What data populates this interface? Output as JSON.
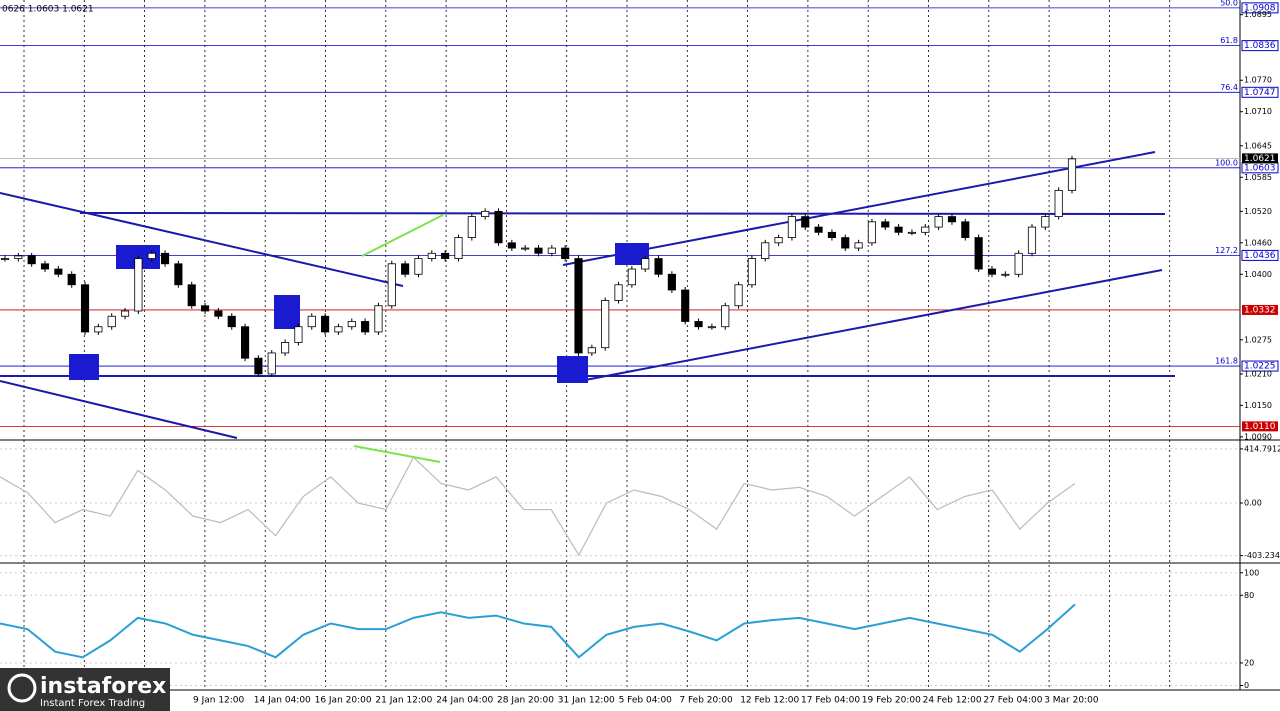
{
  "header": "0626 1.0603 1.0621",
  "logo": {
    "name": "instaforex",
    "tagline": "Instant Forex Trading"
  },
  "xtick_labels": [
    "9 Jan 12:00",
    "14 Jan 04:00",
    "16 Jan 20:00",
    "21 Jan 12:00",
    "24 Jan 04:00",
    "28 Jan 20:00",
    "31 Jan 12:00",
    "5 Feb 04:00",
    "7 Feb 20:00",
    "12 Feb 12:00",
    "17 Feb 04:00",
    "19 Feb 20:00",
    "24 Feb 12:00",
    "27 Feb 04:00",
    "3 Mar 20:00"
  ],
  "chart_data": [
    {
      "type": "candlestick",
      "close": [
        1.043,
        1.0435,
        1.042,
        1.041,
        1.04,
        1.038,
        1.029,
        1.03,
        1.032,
        1.033,
        1.043,
        1.044,
        1.042,
        1.038,
        1.034,
        1.033,
        1.032,
        1.03,
        1.024,
        1.021,
        1.025,
        1.027,
        1.03,
        1.032,
        1.029,
        1.03,
        1.031,
        1.029,
        1.034,
        1.042,
        1.04,
        1.043,
        1.044,
        1.043,
        1.047,
        1.051,
        1.052,
        1.046,
        1.045,
        1.045,
        1.044,
        1.045,
        1.043,
        1.025,
        1.026,
        1.035,
        1.038,
        1.041,
        1.043,
        1.04,
        1.037,
        1.031,
        1.03,
        1.03,
        1.034,
        1.038,
        1.043,
        1.046,
        1.047,
        1.051,
        1.049,
        1.048,
        1.047,
        1.045,
        1.046,
        1.05,
        1.049,
        1.048,
        1.048,
        1.049,
        1.051,
        1.05,
        1.047,
        1.041,
        1.04,
        1.04,
        1.044,
        1.049,
        1.051,
        1.056,
        1.062
      ],
      "ylim": [
        1.0084,
        1.0923
      ],
      "yticks": [
        {
          "value": 1.0895,
          "label": "1.0895"
        },
        {
          "value": 1.077,
          "label": "1.0770"
        },
        {
          "value": 1.071,
          "label": "1.0710"
        },
        {
          "value": 1.0645,
          "label": "1.0645"
        },
        {
          "value": 1.0585,
          "label": "1.0585"
        },
        {
          "value": 1.052,
          "label": "1.0520"
        },
        {
          "value": 1.046,
          "label": "1.0460"
        },
        {
          "value": 1.04,
          "label": "1.0400"
        },
        {
          "value": 1.0275,
          "label": "1.0275"
        },
        {
          "value": 1.021,
          "label": "1.0210"
        },
        {
          "value": 1.015,
          "label": "1.0150"
        },
        {
          "value": 1.009,
          "label": "1.0090"
        }
      ],
      "fib_levels": [
        {
          "value": 1.0908,
          "label": "50.0"
        },
        {
          "value": 1.0836,
          "label": "61.8"
        },
        {
          "value": 1.0747,
          "label": "76.4"
        },
        {
          "value": 1.0603,
          "label": "100.0"
        },
        {
          "value": 1.0436,
          "label": "127.2"
        },
        {
          "value": 1.0225,
          "label": "161.8"
        }
      ],
      "fib_color": "#0000cc",
      "red_levels": [
        {
          "value": 1.0332,
          "label": "1.0332"
        },
        {
          "value": 1.011,
          "label": "1.0110"
        }
      ],
      "red_color": "#cc0000",
      "current": {
        "value": 1.0621,
        "label": "1.0621"
      }
    },
    {
      "type": "line",
      "color": "#bbbbbb",
      "values": [
        200,
        80,
        -150,
        -50,
        -100,
        250,
        100,
        -100,
        -150,
        -50,
        -250,
        50,
        200,
        0,
        -50,
        350,
        150,
        100,
        200,
        -50,
        -50,
        -400,
        0,
        100,
        50,
        -50,
        -200,
        150,
        100,
        120,
        50,
        -100,
        50,
        200,
        -50,
        50,
        100,
        -200,
        0,
        150
      ],
      "ylim": [
        -452,
        460
      ],
      "yticks": [
        {
          "value": 414.7912,
          "label": "414.7912"
        },
        {
          "value": 0,
          "label": "0.00"
        },
        {
          "value": -403.2349,
          "label": "-403.2349"
        }
      ]
    },
    {
      "type": "line",
      "color": "#2a9fd6",
      "values": [
        55,
        50,
        30,
        25,
        40,
        60,
        55,
        45,
        40,
        35,
        25,
        45,
        55,
        50,
        50,
        60,
        65,
        60,
        62,
        55,
        52,
        25,
        45,
        52,
        55,
        48,
        40,
        55,
        58,
        60,
        55,
        50,
        55,
        60,
        55,
        50,
        45,
        30,
        50,
        72
      ],
      "ylim": [
        -4,
        106
      ],
      "yticks": [
        100,
        80,
        20,
        0
      ]
    }
  ]
}
